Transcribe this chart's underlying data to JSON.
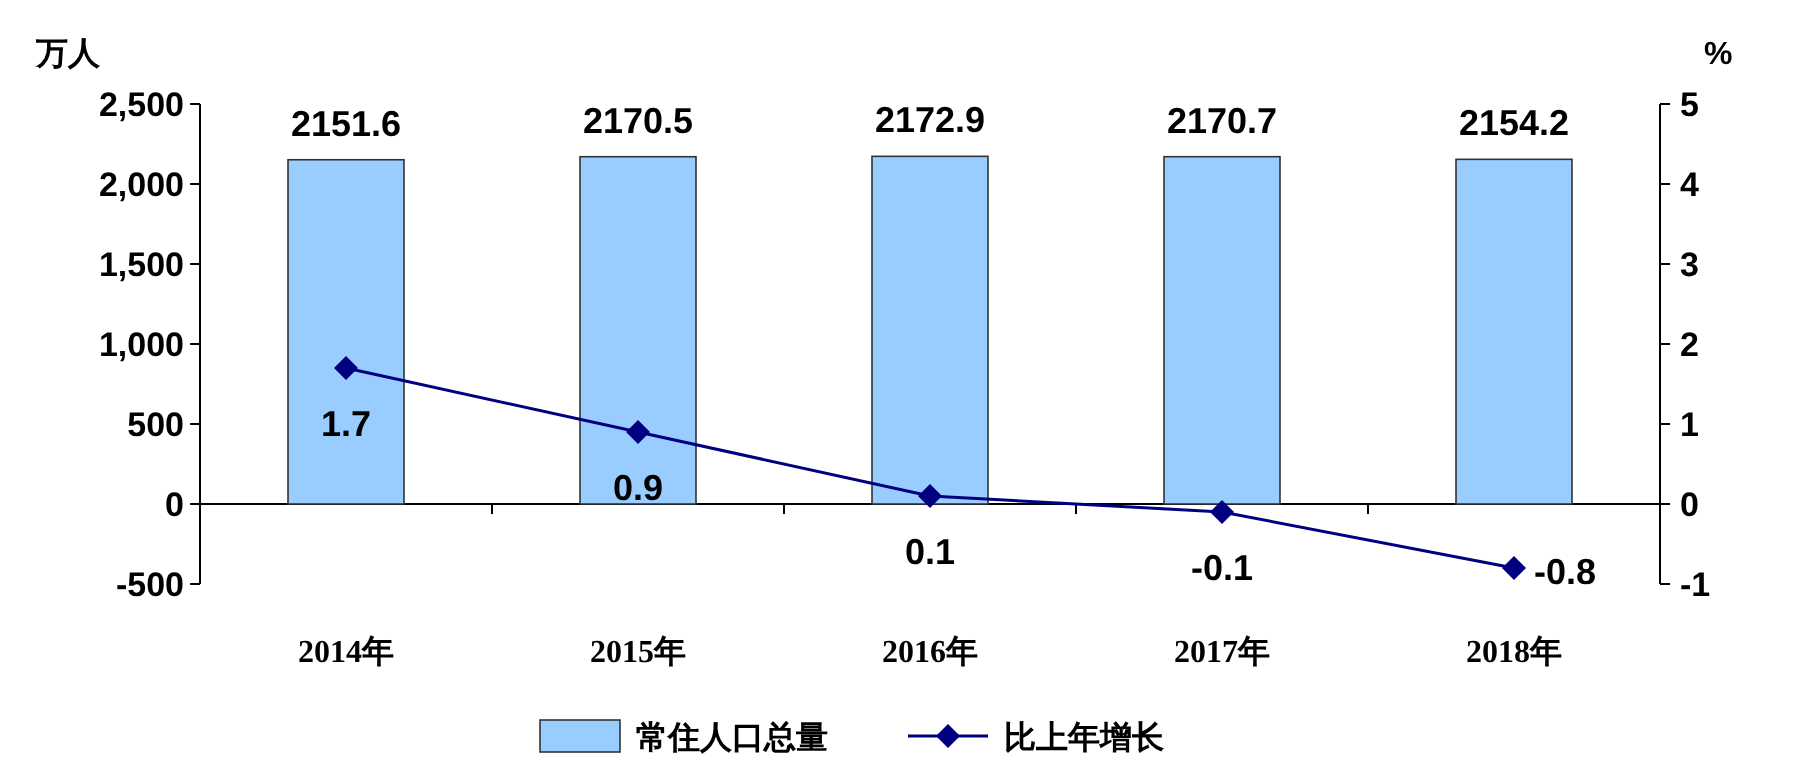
{
  "chart_data": {
    "type": "bar",
    "categories": [
      "2014年",
      "2015年",
      "2016年",
      "2017年",
      "2018年"
    ],
    "ylabel": "万人",
    "y2label": "%",
    "ylim": [
      -500,
      2500
    ],
    "yticks": [
      {
        "value": -500,
        "label": "-500"
      },
      {
        "value": 0,
        "label": "0"
      },
      {
        "value": 500,
        "label": "500"
      },
      {
        "value": 1000,
        "label": "1,000"
      },
      {
        "value": 1500,
        "label": "1,500"
      },
      {
        "value": 2000,
        "label": "2,000"
      },
      {
        "value": 2500,
        "label": "2,500"
      }
    ],
    "y2lim": [
      -1,
      5
    ],
    "y2ticks": [
      -1,
      0,
      1,
      2,
      3,
      4,
      5
    ],
    "series": [
      {
        "name": "常住人口总量",
        "color": "#99ccff",
        "values": [
          2151.6,
          2170.5,
          2172.9,
          2170.7,
          2154.2
        ]
      },
      {
        "name": "比上年增长",
        "type": "line",
        "axis": "y2",
        "color": "#000080",
        "values": [
          1.7,
          0.9,
          0.1,
          -0.1,
          -0.8
        ]
      }
    ],
    "marker": "diamond",
    "data_labels": true,
    "legend": "bottom"
  }
}
